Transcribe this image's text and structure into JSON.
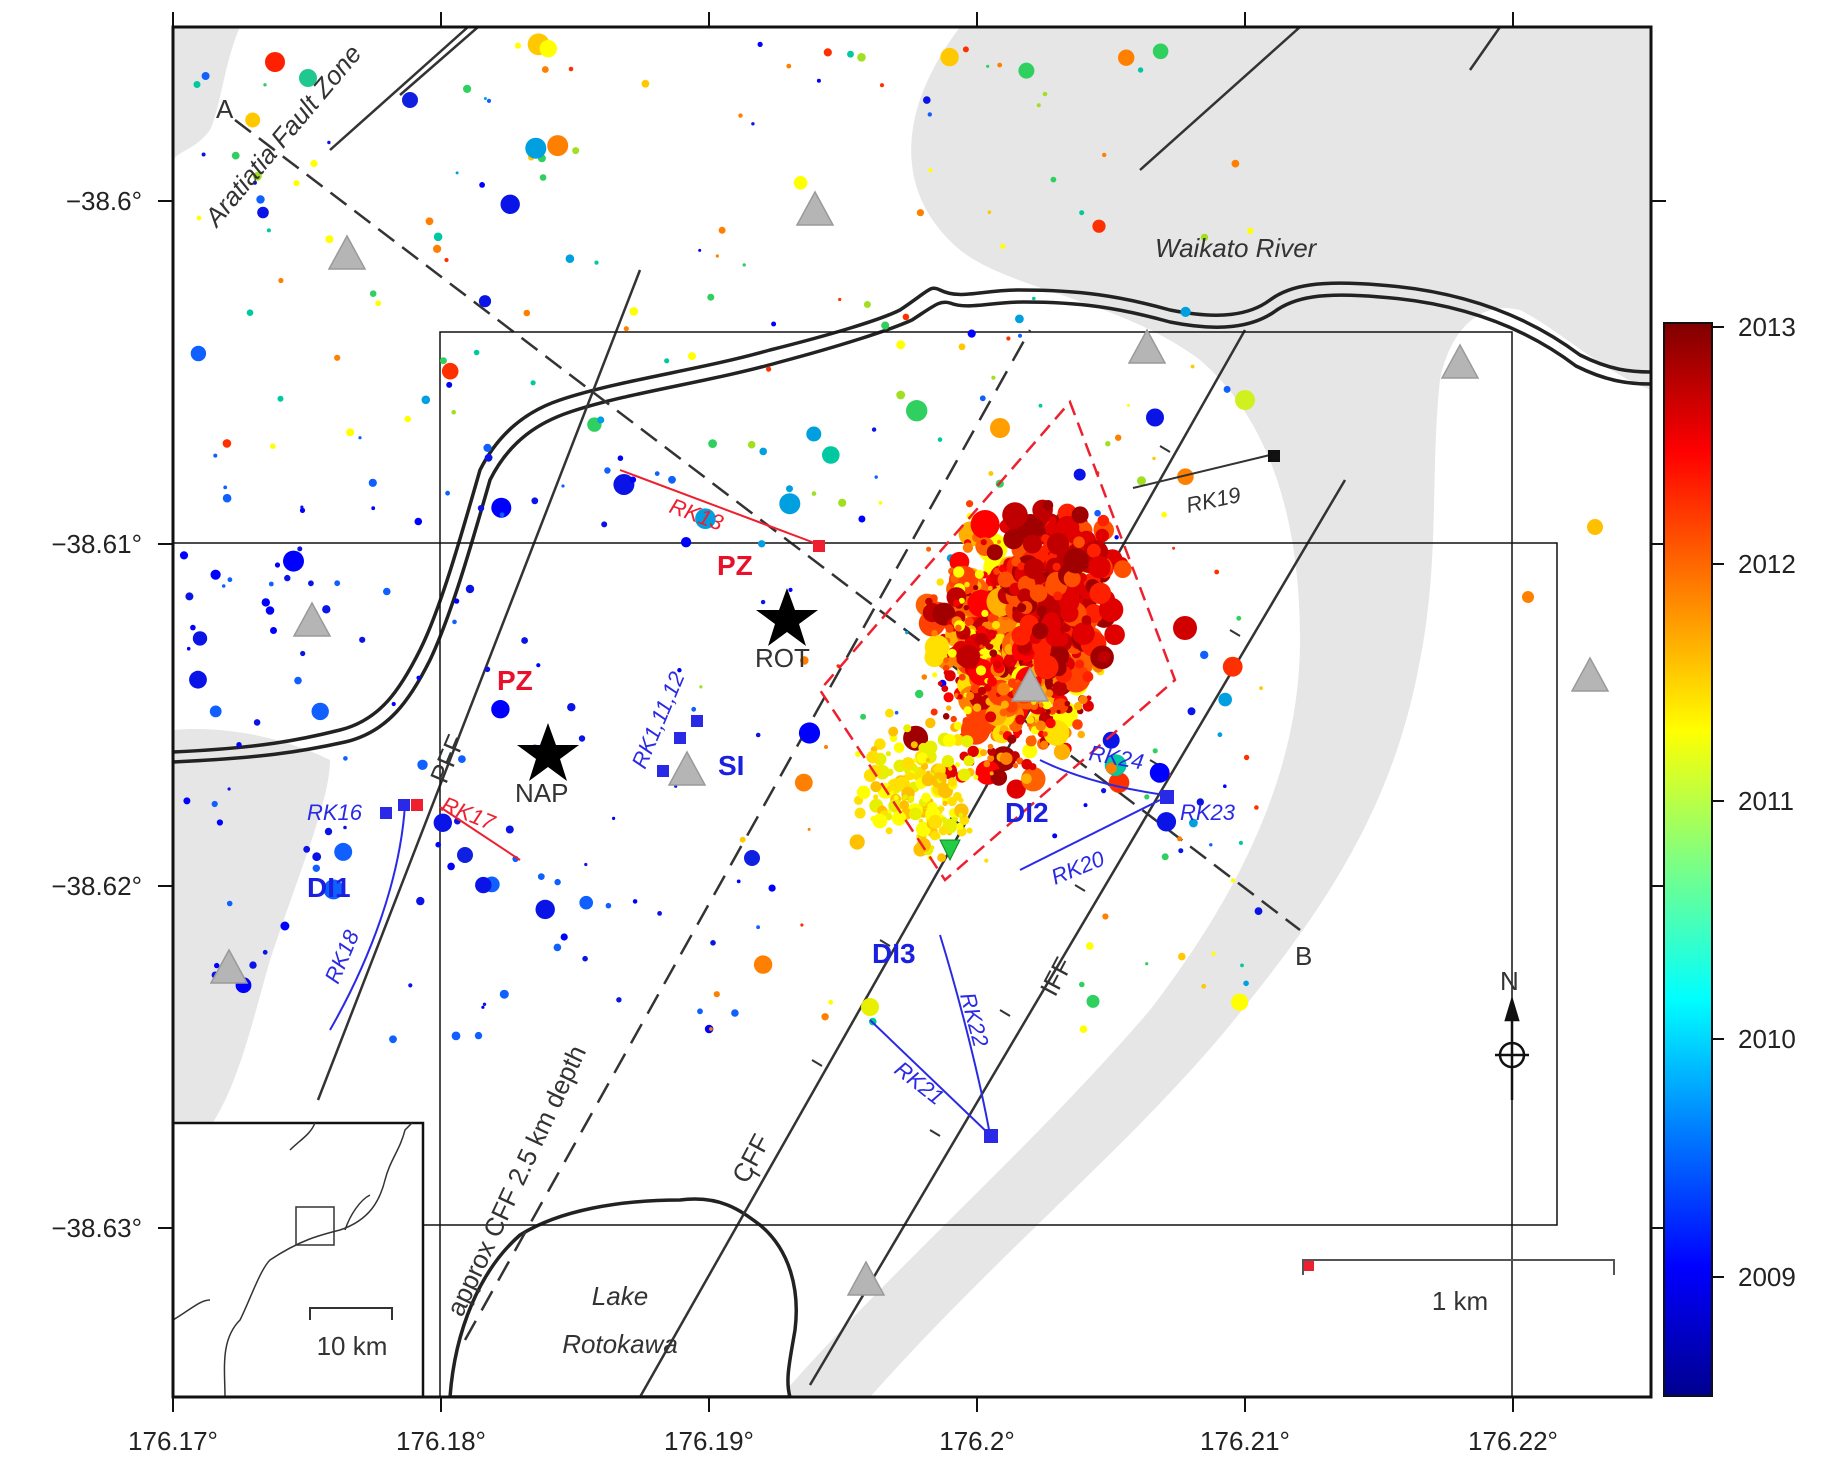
{
  "map": {
    "x_ticks": [
      "176.17°",
      "176.18°",
      "176.19°",
      "176.2°",
      "176.21°",
      "176.22°"
    ],
    "y_ticks": [
      "−38.6°",
      "−38.61°",
      "−38.62°",
      "−38.63°"
    ],
    "labels": {
      "aratiatia": "Aratiatia Fault Zone",
      "waikato": "Waikato River",
      "lake_line1": "Lake",
      "lake_line2": "Rotokawa",
      "point_a": "A",
      "point_b": "B",
      "pff": "PFF",
      "cff": "CFF",
      "iff": "IFF",
      "cff_depth": "approx CFF 2.5 km depth",
      "pz_top": "PZ",
      "pz_left": "PZ",
      "rot": "ROT",
      "nap": "NAP",
      "si": "SI",
      "di1": "DI1",
      "di2": "DI2",
      "di3": "DI3",
      "north": "N"
    },
    "wells": {
      "rk13": "RK13",
      "rk16": "RK16",
      "rk17": "RK17",
      "rk18": "RK18",
      "rk19": "RK19",
      "rk20": "RK20",
      "rk21": "RK21",
      "rk22": "RK22",
      "rk23": "RK23",
      "rk24": "RK24",
      "rk1_11_12": "RK1,11,12"
    },
    "scale_bar": "1 km",
    "inset_scale": "10 km"
  },
  "colorbar": {
    "ticks": [
      "2013",
      "2012",
      "2011",
      "2010",
      "2009"
    ],
    "colors": [
      "#00008f",
      "#0000ff",
      "#0080ff",
      "#00ffff",
      "#80ff80",
      "#ffff00",
      "#ff8000",
      "#ff0000",
      "#800000"
    ]
  },
  "colors": {
    "shade": "#e6e6e6",
    "triangle": "#b5b5b5",
    "well_blue": "#2a2ae6",
    "well_red": "#ee2030",
    "dashed_red": "#ee2030"
  }
}
